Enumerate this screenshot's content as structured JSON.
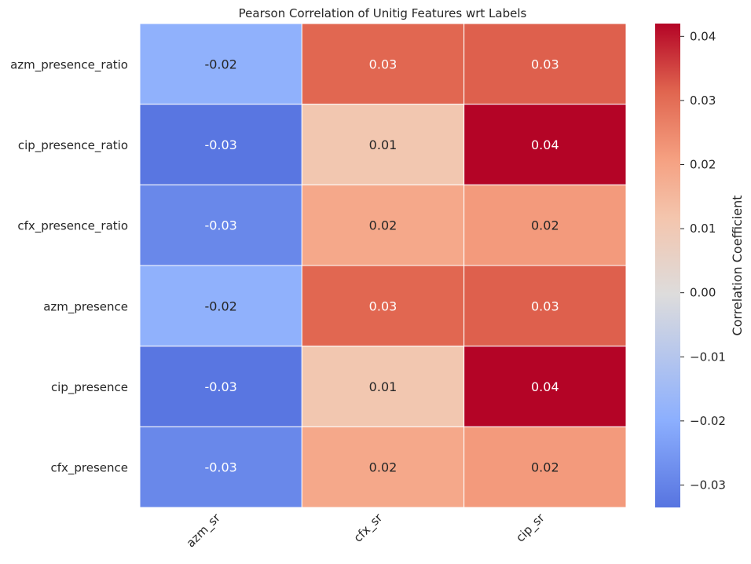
{
  "chart_data": {
    "type": "heatmap",
    "title": "Pearson Correlation of Unitig Features wrt Labels",
    "rows": [
      "azm_presence_ratio",
      "cip_presence_ratio",
      "cfx_presence_ratio",
      "azm_presence",
      "cip_presence",
      "cfx_presence"
    ],
    "columns": [
      "azm_sr",
      "cfx_sr",
      "cip_sr"
    ],
    "values": [
      [
        -0.019,
        0.031,
        0.032
      ],
      [
        -0.033,
        0.011,
        0.042
      ],
      [
        -0.029,
        0.019,
        0.022
      ],
      [
        -0.019,
        0.031,
        0.032
      ],
      [
        -0.033,
        0.011,
        0.042
      ],
      [
        -0.029,
        0.019,
        0.022
      ]
    ],
    "labels": [
      [
        "-0.02",
        "0.03",
        "0.03"
      ],
      [
        "-0.03",
        "0.01",
        "0.04"
      ],
      [
        "-0.03",
        "0.02",
        "0.02"
      ],
      [
        "-0.02",
        "0.03",
        "0.03"
      ],
      [
        "-0.03",
        "0.01",
        "0.04"
      ],
      [
        "-0.03",
        "0.02",
        "0.02"
      ]
    ],
    "colormap": "coolwarm",
    "colorbar": {
      "label": "Correlation Coefficient",
      "range": [
        -0.0335,
        0.042
      ],
      "ticks": [
        0.04,
        0.03,
        0.02,
        0.01,
        0.0,
        -0.01,
        -0.02,
        -0.03
      ],
      "tick_labels": [
        "0.04",
        "0.03",
        "0.02",
        "0.01",
        "0.00",
        "−0.01",
        "−0.02",
        "−0.03"
      ]
    }
  }
}
